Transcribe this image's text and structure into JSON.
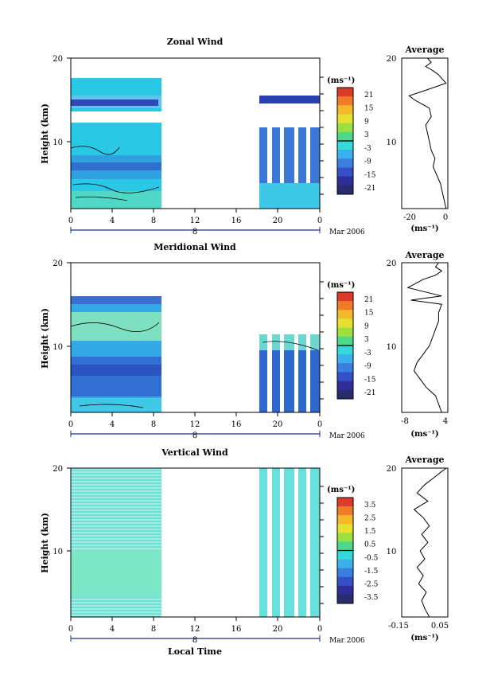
{
  "figure": {
    "date_label": "Mar 2006",
    "xlabel": "Local Time",
    "ylabel": "Height (km)"
  },
  "chart_data": [
    {
      "type": "heatmap",
      "title": "Zonal Wind",
      "x_ticks": [
        "0",
        "4",
        "8",
        "12",
        "16",
        "20",
        "0"
      ],
      "x_range_hours": [
        0,
        24
      ],
      "y_ticks": [
        10,
        20
      ],
      "ylim_km": [
        2,
        20
      ],
      "day_label": "8",
      "data_coverage_hours": [
        [
          0,
          8.5
        ],
        [
          18,
          24
        ]
      ],
      "colorbar": {
        "unit": "(ms⁻¹)",
        "ticks": [
          "21",
          "15",
          "9",
          "3",
          "-3",
          "-9",
          "-15",
          "-21"
        ],
        "range": [
          -24,
          24
        ]
      },
      "profile": {
        "title": "Average",
        "xlabel": "(ms⁻¹)",
        "x_ticks": [
          "-20",
          "0"
        ],
        "xlim": [
          -25,
          0
        ],
        "y_ticks": [
          10,
          20
        ],
        "points": [
          [
            -1,
            2
          ],
          [
            -2,
            3
          ],
          [
            -3,
            4
          ],
          [
            -4,
            5
          ],
          [
            -6,
            6
          ],
          [
            -8,
            7
          ],
          [
            -7,
            8
          ],
          [
            -9,
            9
          ],
          [
            -10,
            10
          ],
          [
            -11,
            11
          ],
          [
            -12,
            12
          ],
          [
            -9,
            13
          ],
          [
            -10,
            14
          ],
          [
            -18,
            15
          ],
          [
            -21,
            15.5
          ],
          [
            -14,
            16
          ],
          [
            -1,
            17
          ],
          [
            -5,
            18
          ],
          [
            -8,
            18.5
          ],
          [
            -12,
            19
          ],
          [
            -9,
            19.5
          ],
          [
            -11,
            20
          ]
        ]
      }
    },
    {
      "type": "heatmap",
      "title": "Meridional Wind",
      "x_ticks": [
        "0",
        "4",
        "8",
        "12",
        "16",
        "20",
        "0"
      ],
      "x_range_hours": [
        0,
        24
      ],
      "y_ticks": [
        10,
        20
      ],
      "ylim_km": [
        2,
        20
      ],
      "day_label": "8",
      "data_coverage_hours": [
        [
          0,
          8.5
        ],
        [
          18,
          24
        ]
      ],
      "colorbar": {
        "unit": "(ms⁻¹)",
        "ticks": [
          "21",
          "15",
          "9",
          "3",
          "-3",
          "-9",
          "-15",
          "-21"
        ],
        "range": [
          -24,
          24
        ]
      },
      "profile": {
        "title": "Average",
        "xlabel": "(ms⁻¹)",
        "x_ticks": [
          "-8",
          "4"
        ],
        "xlim": [
          -10,
          5
        ],
        "y_ticks": [
          10,
          20
        ],
        "points": [
          [
            3,
            2
          ],
          [
            2,
            3
          ],
          [
            1,
            4
          ],
          [
            -2,
            5
          ],
          [
            -4,
            6
          ],
          [
            -6,
            7
          ],
          [
            -5,
            8
          ],
          [
            -3,
            9
          ],
          [
            -1,
            10
          ],
          [
            0,
            11
          ],
          [
            1,
            12
          ],
          [
            2,
            13
          ],
          [
            2,
            14
          ],
          [
            3,
            15
          ],
          [
            -7,
            15.5
          ],
          [
            3,
            16
          ],
          [
            -8,
            17
          ],
          [
            -3,
            18
          ],
          [
            1,
            18.5
          ],
          [
            3,
            19
          ],
          [
            1,
            19.5
          ],
          [
            2,
            20
          ]
        ]
      }
    },
    {
      "type": "heatmap",
      "title": "Vertical Wind",
      "x_ticks": [
        "0",
        "4",
        "8",
        "12",
        "16",
        "20",
        "0"
      ],
      "x_range_hours": [
        0,
        24
      ],
      "y_ticks": [
        10,
        20
      ],
      "ylim_km": [
        2,
        20
      ],
      "day_label": "8",
      "data_coverage_hours": [
        [
          0,
          8.5
        ],
        [
          18,
          24
        ]
      ],
      "colorbar": {
        "unit": "(ms⁻¹)",
        "ticks": [
          "3.5",
          "2.5",
          "1.5",
          "0.5",
          "-0.5",
          "-1.5",
          "-2.5",
          "-3.5"
        ],
        "range": [
          -4,
          4
        ]
      },
      "profile": {
        "title": "Average",
        "xlabel": "(ms⁻¹)",
        "x_ticks": [
          "-0.15",
          "0.05"
        ],
        "xlim": [
          -0.2,
          0.1
        ],
        "y_ticks": [
          10,
          20
        ],
        "points": [
          [
            -0.02,
            2
          ],
          [
            -0.05,
            3
          ],
          [
            -0.07,
            4
          ],
          [
            -0.04,
            5
          ],
          [
            -0.09,
            6
          ],
          [
            -0.06,
            7
          ],
          [
            -0.1,
            8
          ],
          [
            -0.05,
            9
          ],
          [
            -0.08,
            10
          ],
          [
            -0.03,
            11
          ],
          [
            -0.07,
            12
          ],
          [
            -0.02,
            13
          ],
          [
            -0.06,
            14
          ],
          [
            -0.12,
            15
          ],
          [
            -0.03,
            16
          ],
          [
            -0.1,
            17
          ],
          [
            -0.05,
            18
          ],
          [
            0.02,
            19
          ],
          [
            0.06,
            19.6
          ],
          [
            0.09,
            20
          ]
        ]
      }
    }
  ]
}
